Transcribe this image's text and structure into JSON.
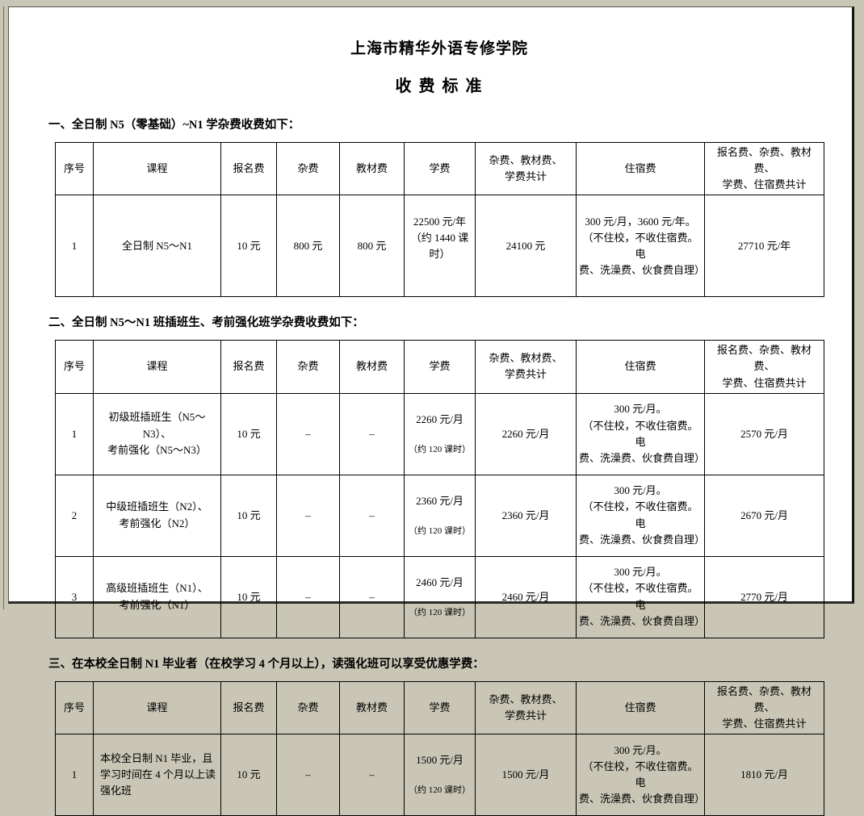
{
  "document": {
    "title": "上海市精华外语专修学院",
    "subtitle": "收 费 标 准"
  },
  "columns": [
    "序号",
    "课程",
    "报名费",
    "杂费",
    "教材费",
    "学费",
    "杂费、教材费、\n学费共计",
    "住宿费",
    "报名费、杂费、教材费、\n学费、住宿费共计"
  ],
  "sections": [
    {
      "heading": "一、全日制 N5（零基础）~N1 学杂费收费如下：",
      "rows": [
        {
          "no": "1",
          "course": "全日制 N5～N1",
          "reg": "10 元",
          "misc": "800 元",
          "material": "800 元",
          "tuition": "22500 元/年\n（约 1440 课\n时）",
          "tuition_note": "",
          "subtotal": "24100 元",
          "dorm": "300 元/月，3600 元/年。\n（不住校，不收住宿费。电\n费、洗澡费、伙食费自理）",
          "total": "27710 元/年"
        }
      ]
    },
    {
      "heading": "二、全日制 N5～N1 班插班生、考前强化班学杂费收费如下：",
      "rows": [
        {
          "no": "1",
          "course": "初级班插班生（N5～N3）、\n考前强化（N5～N3）",
          "reg": "10 元",
          "misc": "–",
          "material": "–",
          "tuition": "2260 元/月",
          "tuition_note": "（约 120 课时）",
          "subtotal": "2260 元/月",
          "dorm": "300 元/月。\n（不住校，不收住宿费。电\n费、洗澡费、伙食费自理）",
          "total": "2570 元/月"
        },
        {
          "no": "2",
          "course": "中级班插班生（N2）、\n考前强化（N2）",
          "reg": "10 元",
          "misc": "–",
          "material": "–",
          "tuition": "2360 元/月",
          "tuition_note": "（约 120 课时）",
          "subtotal": "2360 元/月",
          "dorm": "300 元/月。\n（不住校，不收住宿费。电\n费、洗澡费、伙食费自理）",
          "total": "2670 元/月"
        },
        {
          "no": "3",
          "course": "高级班插班生（N1）、\n考前强化（N1）",
          "reg": "10 元",
          "misc": "–",
          "material": "–",
          "tuition": "2460 元/月",
          "tuition_note": "（约 120 课时）",
          "subtotal": "2460 元/月",
          "dorm": "300 元/月。\n（不住校，不收住宿费。电\n费、洗澡费、伙食费自理）",
          "total": "2770 元/月"
        }
      ]
    },
    {
      "heading": "三、在本校全日制 N1 毕业者（在校学习 4 个月以上），读强化班可以享受优惠学费：",
      "rows": [
        {
          "no": "1",
          "course": "本校全日制 N1 毕业，且\n学习时间在 4 个月以上读\n强化班",
          "reg": "10 元",
          "misc": "–",
          "material": "–",
          "tuition": "1500 元/月",
          "tuition_note": "（约 120 课时）",
          "subtotal": "1500 元/月",
          "dorm": "300 元/月。\n（不住校，不收住宿费。电\n费、洗澡费、伙食费自理）",
          "total": "1810 元/月"
        }
      ]
    }
  ]
}
